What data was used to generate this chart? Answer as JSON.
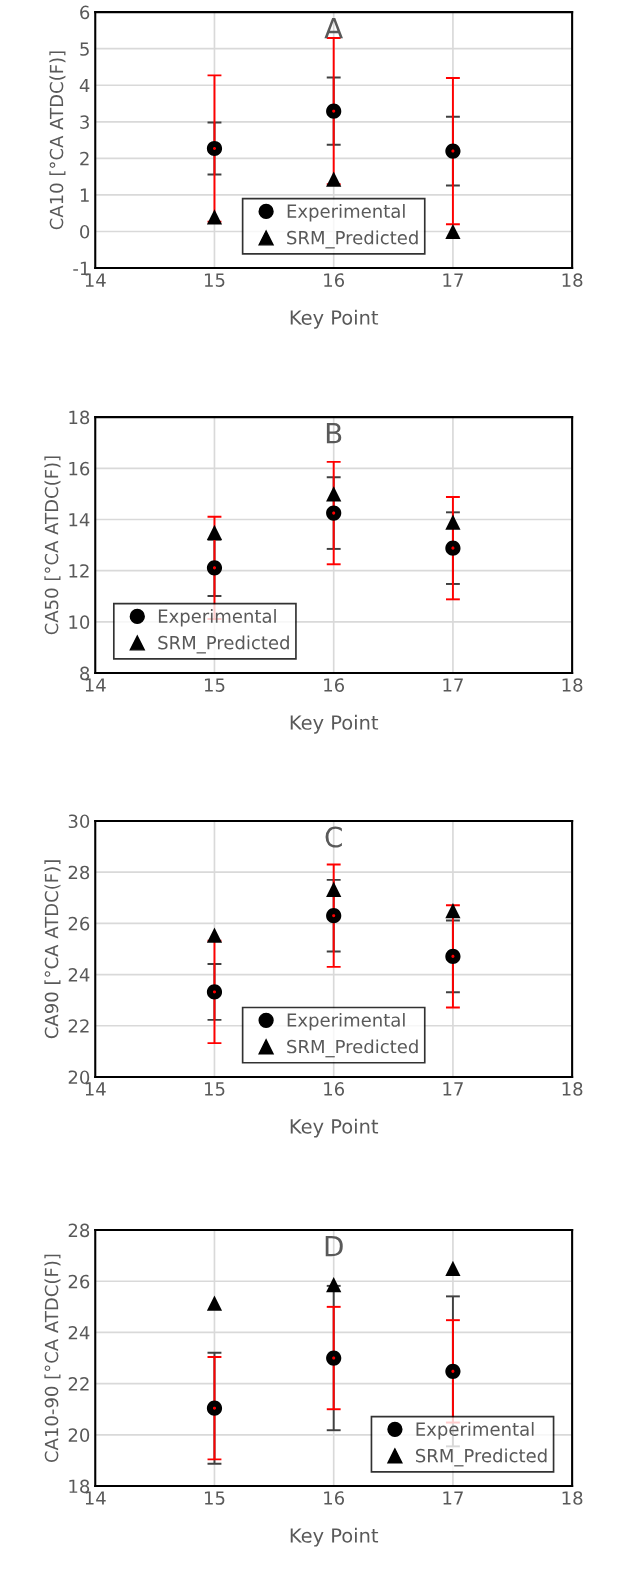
{
  "chart_data": [
    {
      "type": "scatter",
      "title": "A",
      "xlabel": "Key Point",
      "ylabel": "CA10 [°CA ATDC(F)]",
      "x": [
        15,
        16,
        17
      ],
      "xlim": [
        14,
        18
      ],
      "xticks": [
        14,
        15,
        16,
        17,
        18
      ],
      "ylim": [
        -1,
        6
      ],
      "yticks": [
        -1,
        0,
        1,
        2,
        3,
        4,
        5,
        6
      ],
      "grid": true,
      "legend": "bottom",
      "series": [
        {
          "name": "Experimental",
          "color": "#000000",
          "marker": "circle",
          "values": [
            2.27,
            3.29,
            2.2
          ],
          "errors": [
            0.71,
            0.92,
            0.94
          ]
        },
        {
          "color": "#ff0000",
          "marker": "none",
          "values": [
            2.27,
            3.29,
            2.2
          ],
          "errors": [
            2.0,
            2.0,
            2.0
          ]
        },
        {
          "name": "SRM_Predicted",
          "color": "#000000",
          "marker": "triangle",
          "values": [
            0.4,
            1.43,
            0.0
          ]
        }
      ]
    },
    {
      "type": "scatter",
      "title": "B",
      "xlabel": "Key Point",
      "ylabel": "CA50 [°CA ATDC(F)]",
      "x": [
        15,
        16,
        17
      ],
      "xlim": [
        14,
        18
      ],
      "xticks": [
        14,
        15,
        16,
        17,
        18
      ],
      "ylim": [
        8,
        18
      ],
      "yticks": [
        8,
        10,
        12,
        14,
        16,
        18
      ],
      "grid": true,
      "legend": "bottom left",
      "series": [
        {
          "name": "Experimental",
          "color": "#000000",
          "marker": "circle",
          "values": [
            12.11,
            14.25,
            12.88
          ],
          "errors": [
            1.1,
            1.4,
            1.4
          ]
        },
        {
          "color": "#ff0000",
          "marker": "none",
          "values": [
            12.11,
            14.25,
            12.88
          ],
          "errors": [
            2.0,
            2.0,
            2.0
          ]
        },
        {
          "name": "SRM_Predicted",
          "color": "#000000",
          "marker": "triangle",
          "values": [
            13.5,
            15.0,
            13.9
          ]
        }
      ]
    },
    {
      "type": "scatter",
      "title": "C",
      "xlabel": "Key Point",
      "ylabel": "CA90 [°CA ATDC(F)]",
      "x": [
        15,
        16,
        17
      ],
      "xlim": [
        14,
        18
      ],
      "xticks": [
        14,
        15,
        16,
        17,
        18
      ],
      "ylim": [
        20,
        30
      ],
      "yticks": [
        20,
        22,
        24,
        26,
        28,
        30
      ],
      "grid": true,
      "legend": "bottom",
      "series": [
        {
          "name": "Experimental",
          "color": "#000000",
          "marker": "circle",
          "values": [
            23.32,
            26.3,
            24.71
          ],
          "errors": [
            1.09,
            1.4,
            1.4
          ]
        },
        {
          "color": "#ff0000",
          "marker": "none",
          "values": [
            23.32,
            26.3,
            24.71
          ],
          "errors": [
            2.0,
            2.0,
            2.0
          ]
        },
        {
          "name": "SRM_Predicted",
          "color": "#000000",
          "marker": "triangle",
          "values": [
            25.54,
            27.33,
            26.5
          ]
        }
      ]
    },
    {
      "type": "scatter",
      "title": "D",
      "xlabel": "Key Point",
      "ylabel": "CA10-90 [°CA ATDC(F)]",
      "x": [
        15,
        16,
        17
      ],
      "xlim": [
        14,
        18
      ],
      "xticks": [
        14,
        15,
        16,
        17,
        18
      ],
      "ylim": [
        18,
        28
      ],
      "yticks": [
        18,
        20,
        22,
        24,
        26,
        28
      ],
      "grid": true,
      "legend": "bottom right",
      "series": [
        {
          "name": "Experimental",
          "color": "#000000",
          "marker": "circle",
          "values": [
            21.04,
            23.0,
            22.48
          ],
          "errors": [
            2.17,
            2.82,
            2.93
          ]
        },
        {
          "color": "#ff0000",
          "marker": "none",
          "values": [
            21.04,
            23.0,
            22.48
          ],
          "errors": [
            2.0,
            2.0,
            2.0
          ]
        },
        {
          "name": "SRM_Predicted",
          "color": "#000000",
          "marker": "triangle",
          "values": [
            25.15,
            25.87,
            26.5
          ]
        }
      ]
    }
  ]
}
